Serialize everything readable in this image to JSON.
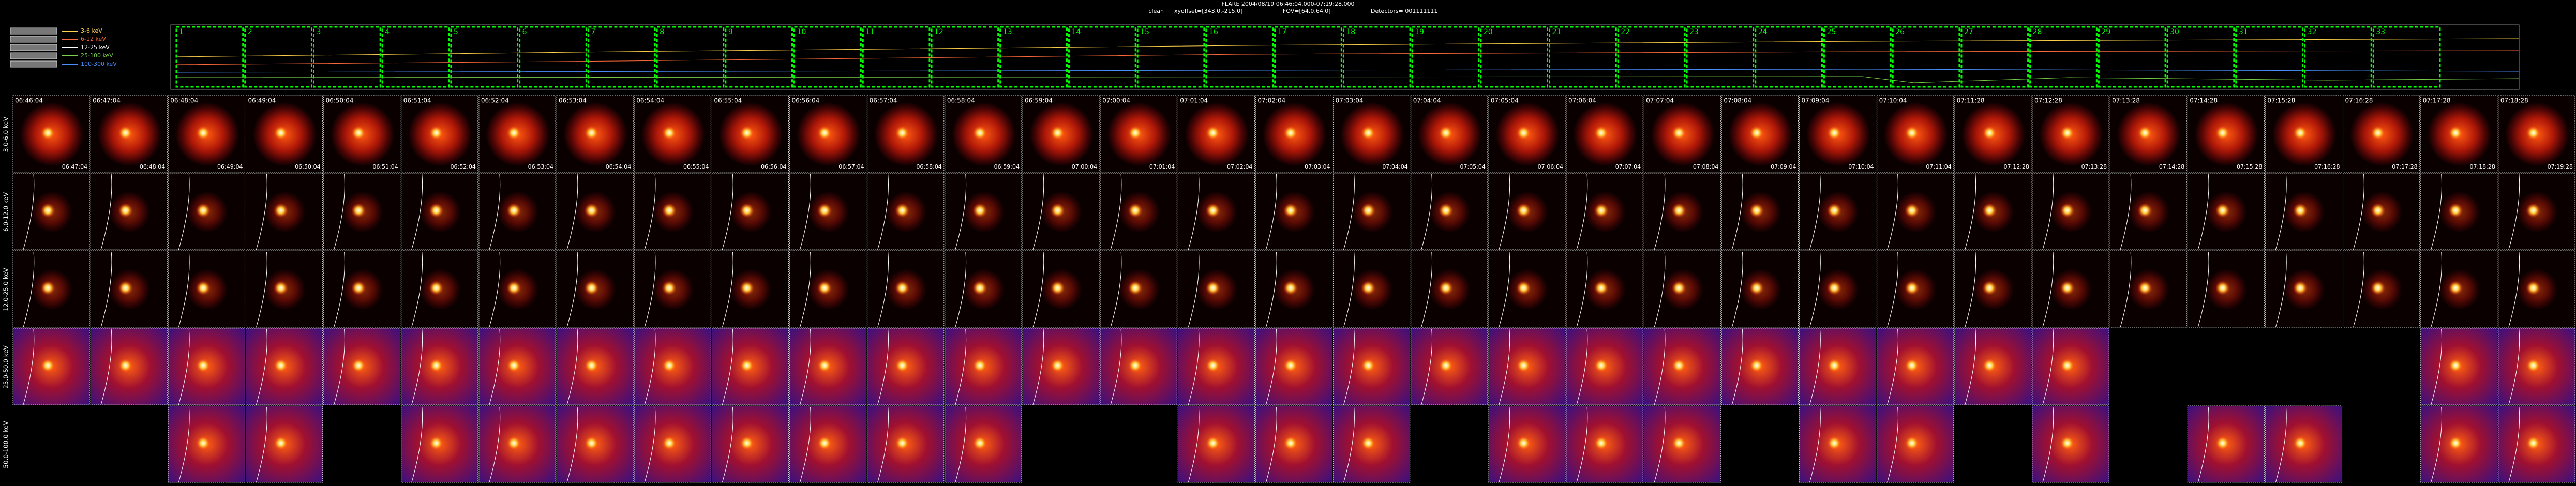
{
  "header": {
    "title": "FLARE 2004/08/19 06:46:04.000-07:19:28.000",
    "method": "clean",
    "xyoffset": "xyoffset=[343.0,-215.0]",
    "fov": "FOV=[64.0,64.0]",
    "detectors": "Detectors= 001111111"
  },
  "legend": [
    {
      "name": "3-6 keV",
      "color": "#ffd24a"
    },
    {
      "name": "6-12 keV",
      "color": "#ff6a3a"
    },
    {
      "name": "12-25 keV",
      "color": "#ffffff"
    },
    {
      "name": "25-100 keV",
      "color": "#7ad04a"
    },
    {
      "name": "100-300 keV",
      "color": "#4a90ff"
    }
  ],
  "intervals": [
    "1",
    "2",
    "3",
    "4",
    "5",
    "6",
    "7",
    "8",
    "9",
    "10",
    "11",
    "12",
    "13",
    "14",
    "15",
    "16",
    "17",
    "18",
    "19",
    "20",
    "21",
    "22",
    "23",
    "24",
    "25",
    "26",
    "27",
    "28",
    "29",
    "30",
    "31",
    "32",
    "33"
  ],
  "rows": [
    {
      "label": "3.0-6.0 keV",
      "present": [
        true,
        true,
        true,
        true,
        true,
        true,
        true,
        true,
        true,
        true,
        true,
        true,
        true,
        true,
        true,
        true,
        true,
        true,
        true,
        true,
        true,
        true,
        true,
        true,
        true,
        true,
        true,
        true,
        true,
        true,
        true,
        true,
        true
      ]
    },
    {
      "label": "6.0-12.0 keV",
      "present": [
        true,
        true,
        true,
        true,
        true,
        true,
        true,
        true,
        true,
        true,
        true,
        true,
        true,
        true,
        true,
        true,
        true,
        true,
        true,
        true,
        true,
        true,
        true,
        true,
        true,
        true,
        true,
        true,
        true,
        true,
        true,
        true,
        true
      ]
    },
    {
      "label": "12.0-25.0 keV",
      "present": [
        true,
        true,
        true,
        true,
        true,
        true,
        true,
        true,
        true,
        true,
        true,
        true,
        true,
        true,
        true,
        true,
        true,
        true,
        true,
        true,
        true,
        true,
        true,
        true,
        true,
        true,
        true,
        true,
        true,
        true,
        true,
        true,
        true
      ]
    },
    {
      "label": "25.0-50.0 keV",
      "present": [
        true,
        true,
        true,
        true,
        true,
        true,
        true,
        true,
        true,
        true,
        true,
        true,
        true,
        true,
        true,
        true,
        true,
        true,
        true,
        true,
        true,
        true,
        true,
        true,
        true,
        true,
        true,
        false,
        false,
        false,
        false,
        true,
        true
      ]
    },
    {
      "label": "50.0-100.0 keV",
      "present": [
        false,
        false,
        true,
        true,
        false,
        true,
        true,
        true,
        true,
        true,
        true,
        true,
        true,
        false,
        false,
        true,
        true,
        true,
        false,
        true,
        true,
        true,
        false,
        true,
        true,
        false,
        true,
        false,
        true,
        true,
        false,
        true,
        true
      ]
    }
  ],
  "start_times": [
    "06:46:04",
    "06:47:04",
    "06:48:04",
    "06:49:04",
    "06:50:04",
    "06:51:04",
    "06:52:04",
    "06:53:04",
    "06:54:04",
    "06:55:04",
    "06:56:04",
    "06:57:04",
    "06:58:04",
    "06:59:04",
    "07:00:04",
    "07:01:04",
    "07:02:04",
    "07:03:04",
    "07:04:04",
    "07:05:04",
    "07:06:04",
    "07:07:04",
    "07:08:04",
    "07:09:04",
    "07:10:04",
    "07:11:28",
    "07:12:28",
    "07:13:28",
    "07:14:28",
    "07:15:28",
    "07:16:28",
    "07:17:28",
    "07:18:28"
  ],
  "end_times": [
    "06:47:04",
    "06:48:04",
    "06:49:04",
    "06:50:04",
    "06:51:04",
    "06:52:04",
    "06:53:04",
    "06:54:04",
    "06:55:04",
    "06:56:04",
    "06:57:04",
    "06:58:04",
    "06:59:04",
    "07:00:04",
    "07:01:04",
    "07:02:04",
    "07:03:04",
    "07:04:04",
    "07:05:04",
    "07:06:04",
    "07:07:04",
    "07:08:04",
    "07:09:04",
    "07:10:04",
    "07:11:04",
    "07:12:28",
    "07:13:28",
    "07:14:28",
    "07:15:28",
    "07:16:28",
    "07:17:28",
    "07:18:28",
    "07:19:28"
  ]
}
